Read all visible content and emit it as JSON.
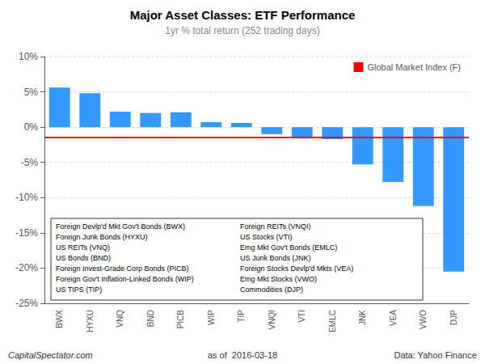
{
  "chart_data": {
    "type": "bar",
    "title": "Major Asset Classes: ETF Performance",
    "subtitle": "1yr % total return (252 trading days)",
    "categories": [
      "BWX",
      "HYXU",
      "VNQ",
      "BND",
      "PICB",
      "WIP",
      "TIP",
      "VNQI",
      "VTI",
      "EMLC",
      "JNK",
      "VEA",
      "VWO",
      "DJP"
    ],
    "values": [
      5.6,
      4.8,
      2.2,
      2.0,
      2.1,
      0.7,
      0.6,
      -1.0,
      -1.6,
      -1.7,
      -5.3,
      -7.8,
      -11.2,
      -20.5
    ],
    "color": "#3399FF",
    "ylim": [
      -25,
      10
    ],
    "yticks": [
      {
        "value": -25,
        "label": "-25%"
      },
      {
        "value": -20,
        "label": "-20%"
      },
      {
        "value": -15,
        "label": "-15%"
      },
      {
        "value": -10,
        "label": "-10%"
      },
      {
        "value": -5,
        "label": "-5%"
      },
      {
        "value": 0,
        "label": "0%"
      },
      {
        "value": 5,
        "label": "5%"
      },
      {
        "value": 10,
        "label": "10%"
      }
    ],
    "grid": true,
    "legend": "upper right",
    "reference_line": {
      "value": -1.5,
      "label": "Global Market Index (F)",
      "color": "#FF0000"
    },
    "key": {
      "left": [
        "Foreign Devlp'd Mkt Gov't Bonds (BWX)",
        "Foreign Junk Bonds (HYXU)",
        "US REITs (VNQ)",
        "US Bonds (BND)",
        "Foreign Invest-Grade Corp Bonds (PICB)",
        "Foreign Gov't Inflation-Linked Bonds (WIP)",
        "US TIPS (TIP)"
      ],
      "right": [
        "Foreign REITs (VNQI)",
        "US Stocks (VTI)",
        "Emg Mkt Gov't Bonds (EMLC)",
        "US Junk Bonds (JNK)",
        "Foreign Stocks Devlp'd Mkts (VEA)",
        "Emg Mkt Stocks (VWO)",
        "Commodities (DJP)"
      ]
    },
    "footer": {
      "left": "CapitalSpectator.com",
      "center": "as of  2016-03-18",
      "right": "Data: Yahoo Finance"
    }
  }
}
